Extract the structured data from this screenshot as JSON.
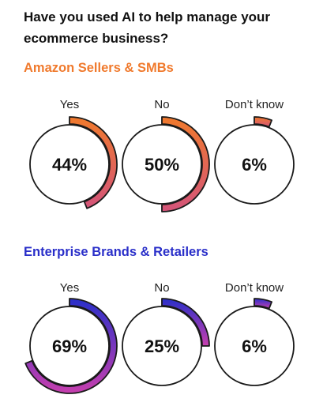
{
  "title": "Have you used AI to help manage your ecommerce business?",
  "chart_data": {
    "type": "donut",
    "categories": [
      "Yes",
      "No",
      "Don’t know"
    ],
    "segments": [
      {
        "name": "Amazon Sellers & SMBs",
        "values": [
          44,
          50,
          6
        ],
        "labels": [
          "44%",
          "50%",
          "6%"
        ],
        "color": "#f07a2d",
        "color_end": "#d4547a"
      },
      {
        "name": "Enterprise Brands & Retailers",
        "values": [
          69,
          25,
          6
        ],
        "labels": [
          "69%",
          "25%",
          "6%"
        ],
        "color": "#2a2fc9",
        "color_end": "#c73fae"
      }
    ]
  }
}
